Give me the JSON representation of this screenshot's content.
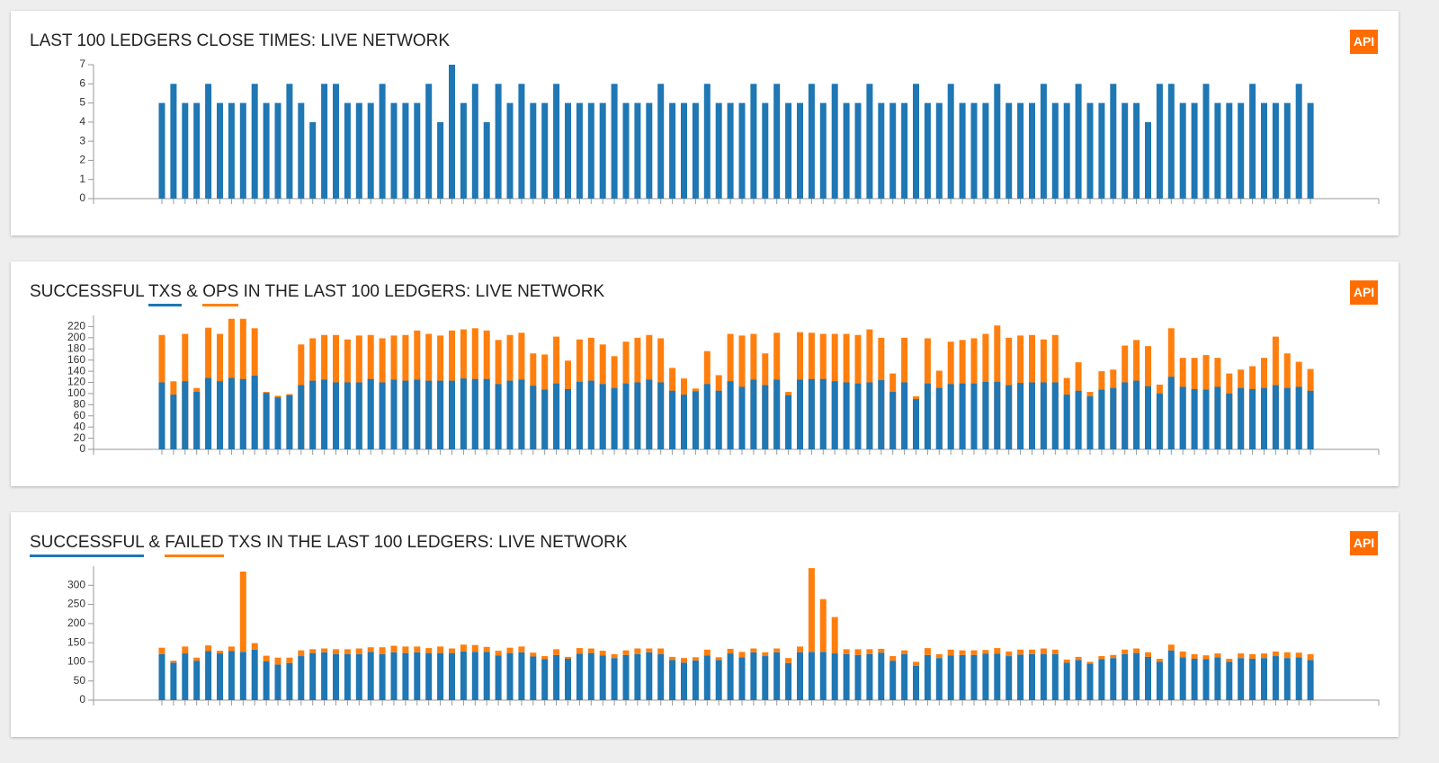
{
  "api_button": "API",
  "chart_data": [
    {
      "type": "bar",
      "title": "LAST 100 LEDGERS CLOSE TIMES: LIVE NETWORK",
      "stacked": false,
      "ylim": [
        0,
        7
      ],
      "yticks": [
        0,
        1,
        2,
        3,
        4,
        5,
        6,
        7
      ],
      "series": [
        {
          "color": "#1f77b4",
          "values": [
            5,
            6,
            5,
            5,
            6,
            5,
            5,
            5,
            6,
            5,
            5,
            6,
            5,
            4,
            6,
            6,
            5,
            5,
            5,
            6,
            5,
            5,
            5,
            6,
            4,
            7,
            5,
            6,
            4,
            6,
            5,
            6,
            5,
            5,
            6,
            5,
            5,
            5,
            5,
            6,
            5,
            5,
            5,
            6,
            5,
            5,
            5,
            6,
            5,
            5,
            5,
            6,
            5,
            6,
            5,
            5,
            6,
            5,
            6,
            5,
            5,
            6,
            5,
            5,
            5,
            6,
            5,
            5,
            6,
            5,
            5,
            5,
            6,
            5,
            5,
            5,
            6,
            5,
            5,
            6,
            5,
            5,
            6,
            5,
            5,
            4,
            6,
            6,
            5,
            5,
            6,
            5,
            5,
            5,
            6,
            5,
            5,
            5,
            6,
            5
          ]
        }
      ]
    },
    {
      "type": "bar",
      "title_before": "SUCCESSFUL",
      "title_between": "&",
      "title_after": "IN THE LAST 100 LEDGERS: LIVE NETWORK",
      "stacked": false,
      "ylim": [
        0,
        240
      ],
      "yticks": [
        0,
        20,
        40,
        60,
        80,
        100,
        120,
        140,
        160,
        180,
        200,
        220
      ],
      "series": [
        {
          "name": "TXS",
          "color": "#1f77b4",
          "values": [
            120,
            98,
            122,
            103,
            128,
            122,
            128,
            126,
            132,
            101,
            93,
            97,
            115,
            123,
            125,
            120,
            120,
            120,
            126,
            120,
            125,
            123,
            125,
            123,
            123,
            123,
            127,
            126,
            126,
            117,
            123,
            125,
            114,
            107,
            118,
            108,
            121,
            123,
            117,
            110,
            118,
            120,
            125,
            120,
            105,
            98,
            104,
            117,
            105,
            122,
            112,
            125,
            115,
            125,
            97,
            125,
            126,
            126,
            122,
            120,
            118,
            120,
            124,
            103,
            120,
            90,
            118,
            110,
            117,
            118,
            118,
            121,
            121,
            115,
            119,
            120,
            120,
            120,
            98,
            105,
            95,
            107,
            110,
            120,
            123,
            113,
            100,
            130,
            112,
            108,
            107,
            112,
            100,
            110,
            108,
            110,
            115,
            110,
            112,
            105
          ]
        },
        {
          "name": "OPS",
          "color": "#ff7f0e",
          "values": [
            205,
            122,
            207,
            110,
            218,
            207,
            234,
            234,
            217,
            103,
            96,
            99,
            188,
            199,
            205,
            205,
            197,
            204,
            205,
            199,
            204,
            205,
            213,
            207,
            204,
            213,
            215,
            217,
            213,
            196,
            205,
            209,
            172,
            170,
            202,
            159,
            197,
            200,
            188,
            167,
            193,
            200,
            205,
            199,
            146,
            127,
            109,
            176,
            133,
            207,
            204,
            207,
            172,
            209,
            103,
            210,
            209,
            207,
            207,
            207,
            205,
            215,
            200,
            136,
            200,
            95,
            199,
            141,
            193,
            196,
            199,
            207,
            222,
            200,
            204,
            205,
            197,
            205,
            128,
            156,
            103,
            140,
            143,
            186,
            196,
            185,
            116,
            217,
            164,
            164,
            169,
            164,
            136,
            143,
            149,
            164,
            202,
            172,
            157,
            144
          ]
        }
      ]
    },
    {
      "type": "bar",
      "title_between": "&",
      "title_after": "TXS IN THE LAST 100 LEDGERS: LIVE NETWORK",
      "stacked": true,
      "ylim": [
        0,
        350
      ],
      "yticks": [
        0,
        50,
        100,
        150,
        200,
        250,
        300
      ],
      "series": [
        {
          "name": "SUCCESSFUL",
          "color": "#1f77b4",
          "values": [
            120,
            98,
            122,
            103,
            128,
            122,
            128,
            126,
            132,
            101,
            93,
            97,
            115,
            123,
            125,
            120,
            120,
            120,
            126,
            120,
            125,
            123,
            125,
            123,
            123,
            123,
            127,
            126,
            126,
            117,
            123,
            125,
            114,
            107,
            118,
            108,
            121,
            123,
            117,
            110,
            118,
            120,
            125,
            120,
            105,
            98,
            104,
            117,
            105,
            122,
            112,
            125,
            115,
            125,
            97,
            125,
            126,
            126,
            122,
            120,
            118,
            120,
            124,
            103,
            120,
            90,
            118,
            110,
            117,
            118,
            118,
            121,
            121,
            115,
            119,
            120,
            120,
            120,
            98,
            105,
            95,
            107,
            110,
            120,
            123,
            113,
            100,
            130,
            112,
            108,
            107,
            112,
            100,
            110,
            108,
            110,
            115,
            110,
            112,
            105
          ]
        },
        {
          "name": "FAILED",
          "color": "#ff7f0e",
          "values": [
            17,
            5,
            18,
            8,
            15,
            7,
            12,
            210,
            17,
            15,
            18,
            14,
            15,
            10,
            10,
            13,
            13,
            15,
            12,
            18,
            17,
            17,
            15,
            13,
            17,
            12,
            18,
            18,
            13,
            12,
            14,
            15,
            10,
            8,
            15,
            5,
            15,
            12,
            12,
            10,
            12,
            15,
            10,
            15,
            8,
            12,
            8,
            15,
            7,
            12,
            14,
            10,
            10,
            10,
            13,
            15,
            219,
            138,
            95,
            13,
            15,
            13,
            10,
            12,
            10,
            10,
            18,
            10,
            15,
            12,
            12,
            10,
            15,
            12,
            13,
            12,
            15,
            12,
            8,
            8,
            5,
            8,
            8,
            12,
            12,
            12,
            8,
            15,
            15,
            12,
            10,
            10,
            8,
            12,
            12,
            12,
            12,
            15,
            12,
            15
          ]
        }
      ]
    }
  ]
}
